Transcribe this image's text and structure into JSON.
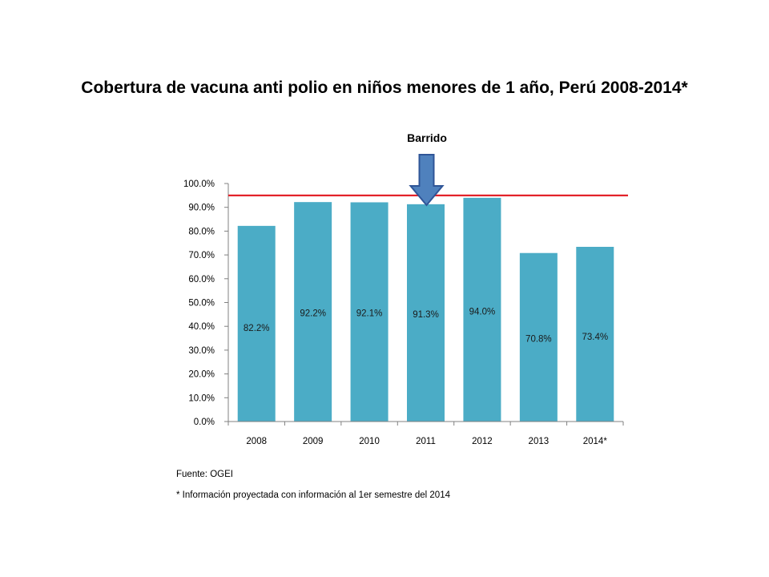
{
  "title": "Cobertura de vacuna anti polio en niños menores de 1 año, Perú 2008-2014*",
  "annotation": {
    "label": "Barrido",
    "category": "2011",
    "arrow_color": "#4F81BD"
  },
  "footnotes": {
    "source": "Fuente: OGEI",
    "note": "* Información proyectada con información al 1er semestre del 2014"
  },
  "chart_data": {
    "type": "bar",
    "categories": [
      "2008",
      "2009",
      "2010",
      "2011",
      "2012",
      "2013",
      "2014*"
    ],
    "values": [
      82.2,
      92.2,
      92.1,
      91.3,
      94.0,
      70.8,
      73.4
    ],
    "data_labels": [
      "82.2%",
      "92.2%",
      "92.1%",
      "91.3%",
      "94.0%",
      "70.8%",
      "73.4%"
    ],
    "label_levels": [
      39.4,
      45.7,
      45.7,
      45.2,
      46.3,
      34.8,
      35.7
    ],
    "ylim": [
      0,
      100
    ],
    "yticks": [
      0,
      10,
      20,
      30,
      40,
      50,
      60,
      70,
      80,
      90,
      100
    ],
    "ytick_labels": [
      "0.0%",
      "10.0%",
      "20.0%",
      "30.0%",
      "40.0%",
      "50.0%",
      "60.0%",
      "70.0%",
      "80.0%",
      "90.0%",
      "100.0%"
    ],
    "reference_line": 95,
    "bar_color": "#4BACC6",
    "reference_color": "#E3232A",
    "grid": false,
    "legend": "none",
    "xlabel": "",
    "ylabel": ""
  }
}
